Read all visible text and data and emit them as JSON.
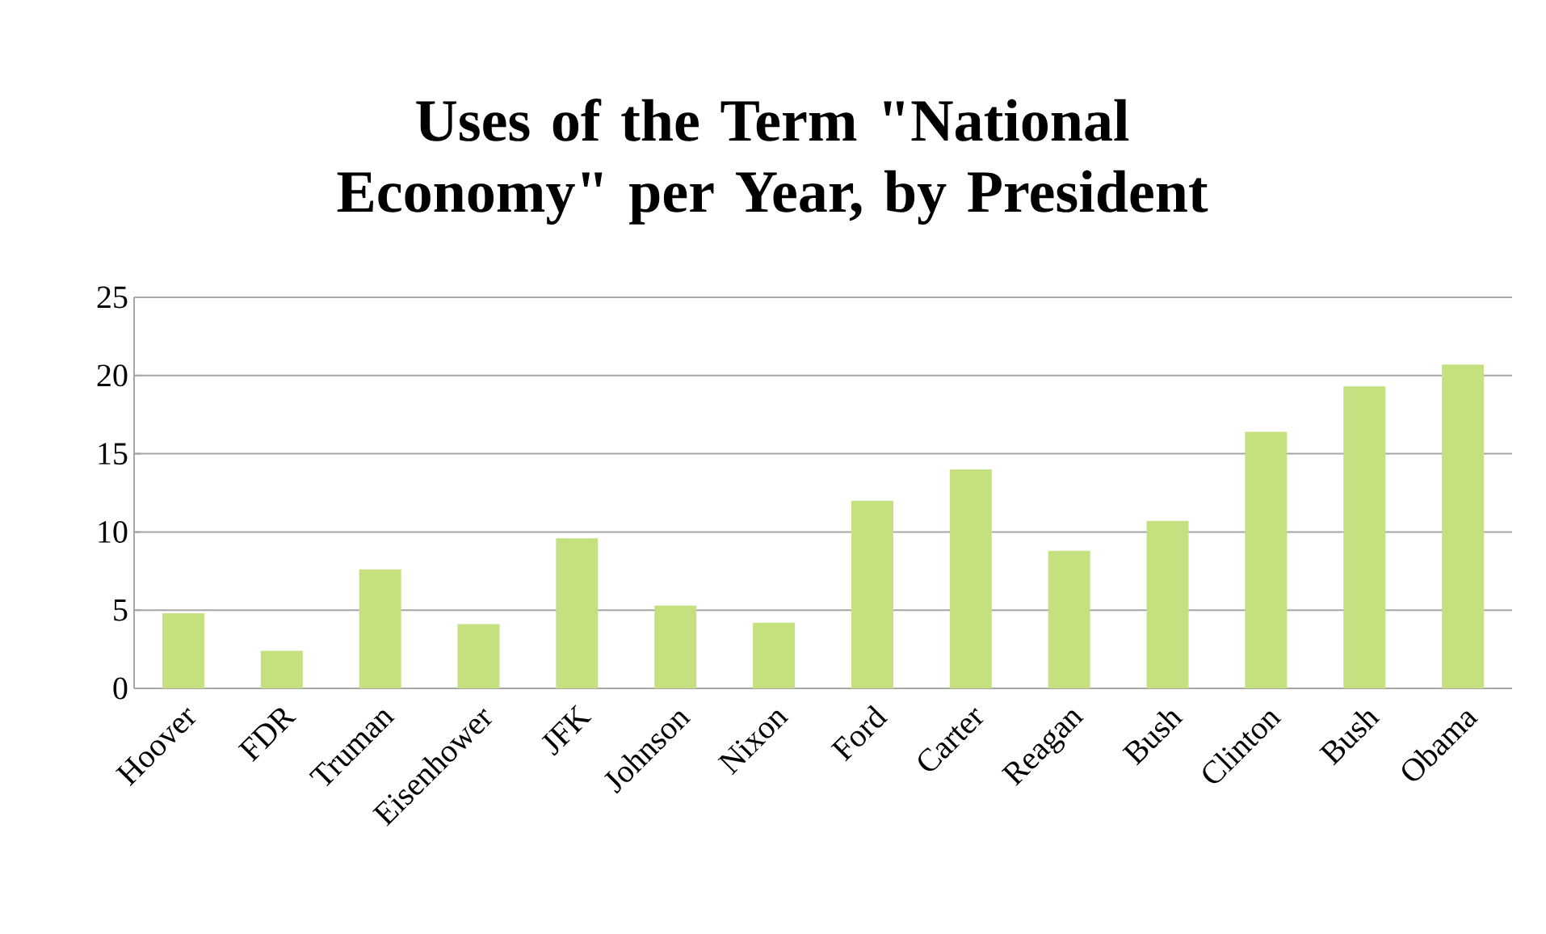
{
  "chart_data": {
    "type": "bar",
    "title": "Uses of the Term \"National Economy\" per Year, by President",
    "categories": [
      "Hoover",
      "FDR",
      "Truman",
      "Eisenhower",
      "JFK",
      "Johnson",
      "Nixon",
      "Ford",
      "Carter",
      "Reagan",
      "Bush",
      "Clinton",
      "Bush",
      "Obama"
    ],
    "values": [
      4.8,
      2.4,
      7.6,
      4.1,
      9.6,
      5.3,
      4.2,
      12.0,
      14.0,
      8.8,
      10.7,
      16.4,
      19.3,
      20.7
    ],
    "color": "#c5e07f",
    "ylim": [
      0,
      25
    ],
    "yticks": [
      0,
      5,
      10,
      15,
      20,
      25
    ],
    "grid": "y"
  }
}
